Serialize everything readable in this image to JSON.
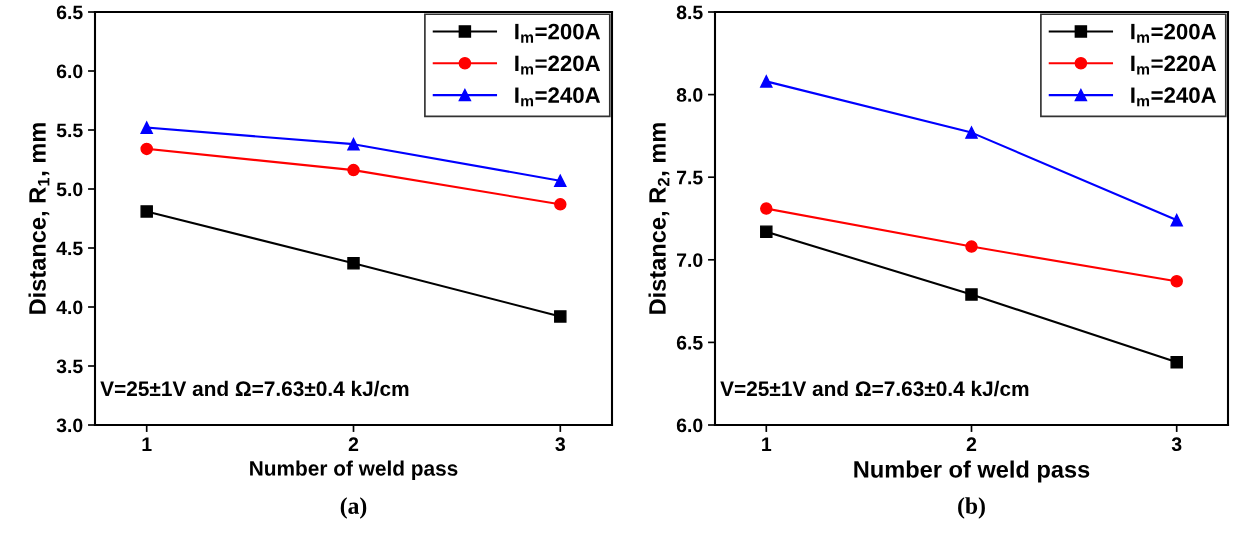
{
  "chart_data": [
    {
      "type": "line",
      "xlabel": "Number of weld pass",
      "ylabel": "Distance, R$_{1}$, mm",
      "x": [
        1,
        2,
        3
      ],
      "xlim": [
        0.75,
        3.25
      ],
      "xticks": [
        1,
        2,
        3
      ],
      "ylim": [
        3.0,
        6.5
      ],
      "yticks": [
        {
          "value": 3.0,
          "label": "3.0"
        },
        {
          "value": 3.5,
          "label": "3.5"
        },
        {
          "value": 4.0,
          "label": "4.0"
        },
        {
          "value": 4.5,
          "label": "4.5"
        },
        {
          "value": 5.0,
          "label": "5.0"
        },
        {
          "value": 5.5,
          "label": "5.5"
        },
        {
          "value": 6.0,
          "label": "6.0"
        },
        {
          "value": 6.5,
          "label": "6.5"
        }
      ],
      "grid": false,
      "legend": "top right",
      "series": [
        {
          "name": "I$_{m}$=200A",
          "color": "#000000",
          "marker": "square",
          "values": [
            4.81,
            4.37,
            3.92
          ]
        },
        {
          "name": "I$_{m}$=220A",
          "color": "#ff0000",
          "marker": "circle",
          "values": [
            5.34,
            5.16,
            4.87
          ]
        },
        {
          "name": "I$_{m}$=240A",
          "color": "#0000ff",
          "marker": "triangle",
          "values": [
            5.52,
            5.38,
            5.07
          ]
        }
      ],
      "annotations": [
        "V=25±1V and Ω=7.63±0.4 kJ/cm",
        "(a)"
      ]
    },
    {
      "type": "line",
      "xlabel": "Number of weld pass",
      "ylabel": "Distance, R$_{2}$, mm",
      "x": [
        1,
        2,
        3
      ],
      "xlim": [
        0.75,
        3.25
      ],
      "xticks": [
        1,
        2,
        3
      ],
      "ylim": [
        6.0,
        8.5
      ],
      "yticks": [
        {
          "value": 6.0,
          "label": "6.0"
        },
        {
          "value": 6.5,
          "label": "6.5"
        },
        {
          "value": 7.0,
          "label": "7.0"
        },
        {
          "value": 7.5,
          "label": "7.5"
        },
        {
          "value": 8.0,
          "label": "8.0"
        },
        {
          "value": 8.5,
          "label": "8.5"
        }
      ],
      "grid": false,
      "legend": "top right",
      "series": [
        {
          "name": "I$_{m}$=200A",
          "color": "#000000",
          "marker": "square",
          "values": [
            7.17,
            6.79,
            6.38
          ]
        },
        {
          "name": "I$_{m}$=220A",
          "color": "#ff0000",
          "marker": "circle",
          "values": [
            7.31,
            7.08,
            6.87
          ]
        },
        {
          "name": "I$_{m}$=240A",
          "color": "#0000ff",
          "marker": "triangle",
          "values": [
            8.08,
            7.77,
            7.24
          ]
        }
      ],
      "annotations": [
        "V=25±1V and Ω=7.63±0.4 kJ/cm",
        "(b)"
      ]
    }
  ]
}
